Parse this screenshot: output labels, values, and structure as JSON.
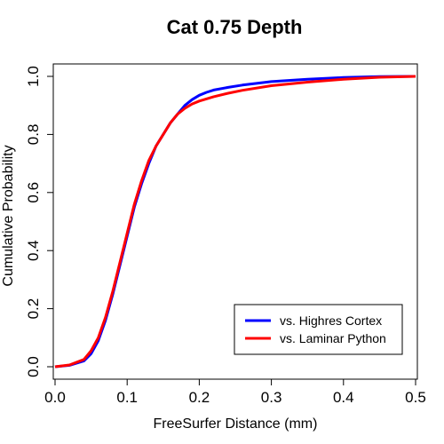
{
  "chart_data": {
    "type": "line",
    "title": "Cat 0.75 Depth",
    "xlabel": "FreeSurfer Distance (mm)",
    "ylabel": "Cumulative Probability",
    "xlim": [
      0,
      0.5
    ],
    "ylim": [
      0,
      1
    ],
    "xticks": [
      "0.0",
      "0.1",
      "0.2",
      "0.3",
      "0.4",
      "0.5"
    ],
    "yticks": [
      "0.0",
      "0.2",
      "0.4",
      "0.6",
      "0.8",
      "1.0"
    ],
    "grid": false,
    "legend_position": "bottom-right",
    "series": [
      {
        "name": "vs. Highres Cortex",
        "color": "#0000ff",
        "x": [
          0,
          0.02,
          0.04,
          0.05,
          0.06,
          0.07,
          0.08,
          0.09,
          0.1,
          0.11,
          0.12,
          0.13,
          0.14,
          0.15,
          0.16,
          0.17,
          0.18,
          0.19,
          0.2,
          0.21,
          0.22,
          0.24,
          0.26,
          0.3,
          0.35,
          0.4,
          0.45,
          0.5
        ],
        "y": [
          0,
          0.005,
          0.02,
          0.045,
          0.09,
          0.16,
          0.25,
          0.35,
          0.45,
          0.55,
          0.63,
          0.7,
          0.76,
          0.8,
          0.84,
          0.87,
          0.9,
          0.92,
          0.935,
          0.945,
          0.953,
          0.962,
          0.97,
          0.982,
          0.99,
          0.996,
          0.999,
          1.0
        ]
      },
      {
        "name": "vs. Laminar Python",
        "color": "#ff0000",
        "x": [
          0,
          0.02,
          0.04,
          0.05,
          0.06,
          0.07,
          0.08,
          0.09,
          0.1,
          0.11,
          0.12,
          0.13,
          0.14,
          0.15,
          0.16,
          0.17,
          0.18,
          0.19,
          0.2,
          0.22,
          0.24,
          0.26,
          0.3,
          0.35,
          0.4,
          0.45,
          0.5
        ],
        "y": [
          0,
          0.006,
          0.025,
          0.055,
          0.1,
          0.17,
          0.26,
          0.36,
          0.46,
          0.56,
          0.64,
          0.71,
          0.76,
          0.8,
          0.84,
          0.87,
          0.89,
          0.905,
          0.915,
          0.93,
          0.942,
          0.952,
          0.968,
          0.98,
          0.99,
          0.997,
          1.0
        ]
      }
    ]
  }
}
